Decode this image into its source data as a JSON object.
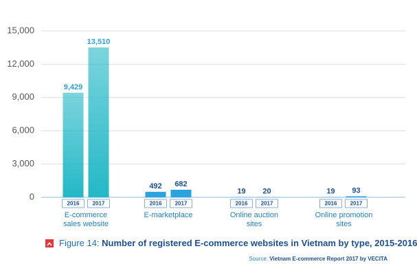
{
  "chart_data": {
    "type": "bar",
    "figure_label": "Figure 14:",
    "title": "Number of registered E-commerce websites in Vietnam by type, 2015-2016",
    "source_label": "Source:",
    "source": "Vietnam E-commerce Report 2017 by VECITA",
    "categories": [
      "E-commerce sales website",
      "E-marketplace",
      "Online auction sites",
      "Online promotion sites"
    ],
    "series": [
      {
        "name": "2016",
        "values": [
          9429,
          492,
          19,
          19
        ],
        "value_labels": [
          "9,429",
          "492",
          "19",
          "19"
        ]
      },
      {
        "name": "2017",
        "values": [
          13510,
          682,
          20,
          93
        ],
        "value_labels": [
          "13,510",
          "682",
          "20",
          "93"
        ]
      }
    ],
    "category_colors": [
      "#23b8c6",
      "#2aa2dd",
      "#2aa2dd",
      "#2aa2dd"
    ],
    "ylim": [
      0,
      15000
    ],
    "yticks": [
      0,
      {
        "value": 3000,
        "label": "3,000"
      },
      {
        "value": 6000,
        "label": "6,000"
      },
      {
        "value": 9000,
        "label": "9,000"
      },
      {
        "value": 12000,
        "label": "12,000"
      },
      {
        "value": 15000,
        "label": "15,000"
      }
    ],
    "grid": true
  }
}
